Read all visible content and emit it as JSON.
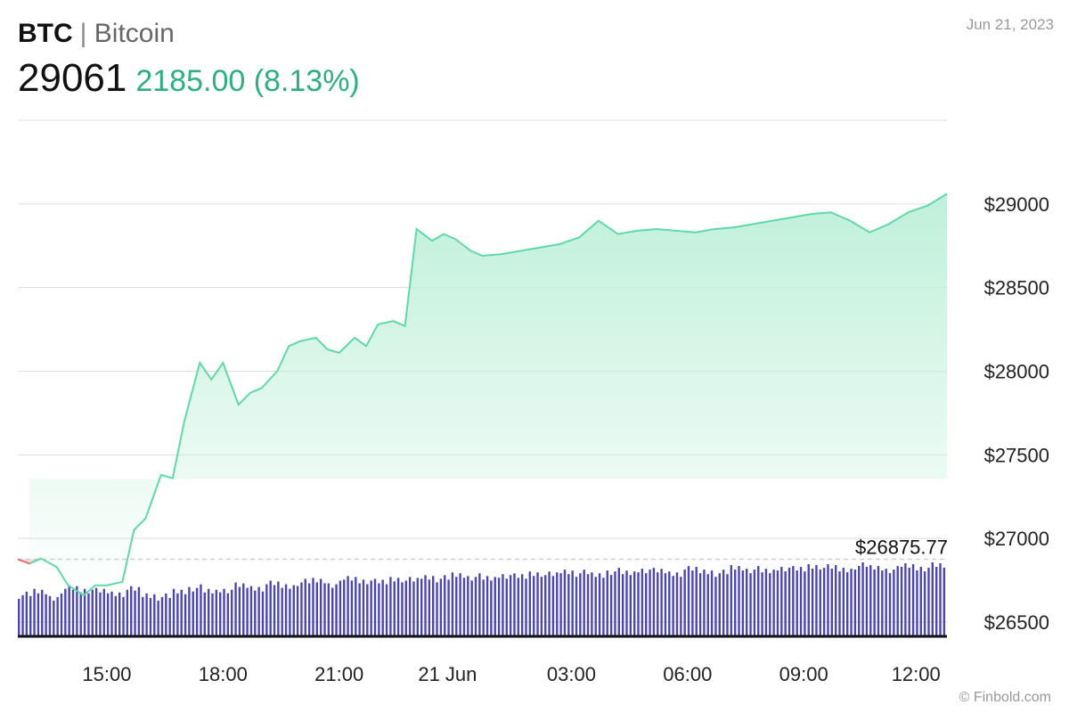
{
  "header": {
    "ticker": "BTC",
    "separator": "|",
    "name": "Bitcoin",
    "price": "29061",
    "change": "2185.00 (8.13%)",
    "date": "Jun 21, 2023"
  },
  "footer": {
    "credit": "© Finbold.com"
  },
  "colors": {
    "up_line": "#5fd9a6",
    "up_fill": "#bff0da",
    "down_line": "#ef6b6b",
    "down_fill": "#ffd3d3",
    "volume": "#4b45ad",
    "grid": "#dcdcdc",
    "change_text": "#2fae84"
  },
  "chart_data": {
    "type": "area",
    "x_tick_labels": [
      "15:00",
      "18:00",
      "21:00",
      "21 Jun",
      "03:00",
      "06:00",
      "09:00",
      "12:00"
    ],
    "y_ticks": [
      26500,
      27000,
      27500,
      28000,
      28500,
      29000
    ],
    "y_tick_labels": [
      "$26500",
      "$27000",
      "$27500",
      "$28000",
      "$28500",
      "$29000"
    ],
    "ylim": [
      26420,
      29500
    ],
    "reference_line": {
      "value": 26875.77,
      "label": "$26875.77"
    },
    "grid": true,
    "series": [
      {
        "x_hours": [
          0,
          0.3,
          0.6,
          1,
          1.3,
          1.7,
          2,
          2.3,
          2.7,
          3,
          3.3,
          3.7,
          4,
          4.3,
          4.7,
          5,
          5.3,
          5.7,
          6,
          6.3,
          6.7,
          7,
          7.3,
          7.7,
          8,
          8.3,
          8.7,
          9,
          9.3,
          9.7,
          10,
          10.3,
          10.7,
          11,
          11.3,
          11.7,
          12,
          12.5,
          13,
          13.5,
          14,
          14.5,
          15,
          15.5,
          16,
          16.5,
          17,
          17.5,
          18,
          18.5,
          19,
          19.5,
          20,
          20.5,
          21,
          21.5,
          22,
          22.5,
          23,
          23.5,
          24
        ],
        "values": [
          26875,
          26850,
          26880,
          26830,
          26720,
          26660,
          26720,
          26720,
          26740,
          27050,
          27120,
          27380,
          27360,
          27700,
          28050,
          27950,
          28050,
          27800,
          27870,
          27900,
          28000,
          28150,
          28180,
          28200,
          28130,
          28110,
          28200,
          28150,
          28280,
          28300,
          28270,
          28850,
          28780,
          28820,
          28790,
          28720,
          28690,
          28700,
          28720,
          28740,
          28760,
          28800,
          28900,
          28820,
          28840,
          28850,
          28840,
          28830,
          28850,
          28860,
          28880,
          28900,
          28920,
          28940,
          28950,
          28900,
          28830,
          28880,
          28950,
          28990,
          29061
        ]
      }
    ],
    "volume": [
      22,
      24,
      21,
      26,
      25,
      24,
      23,
      25,
      22,
      21,
      24,
      26,
      24,
      25,
      27,
      26,
      28,
      27,
      29,
      30,
      28,
      31,
      30,
      29,
      31,
      30,
      32,
      31,
      33,
      32,
      31,
      33,
      32,
      34,
      33,
      35,
      34,
      33,
      35,
      34,
      36,
      35,
      34,
      36,
      35,
      34,
      37,
      36,
      35,
      37,
      36,
      38,
      37,
      36,
      38,
      37,
      36,
      38,
      37,
      38
    ]
  }
}
